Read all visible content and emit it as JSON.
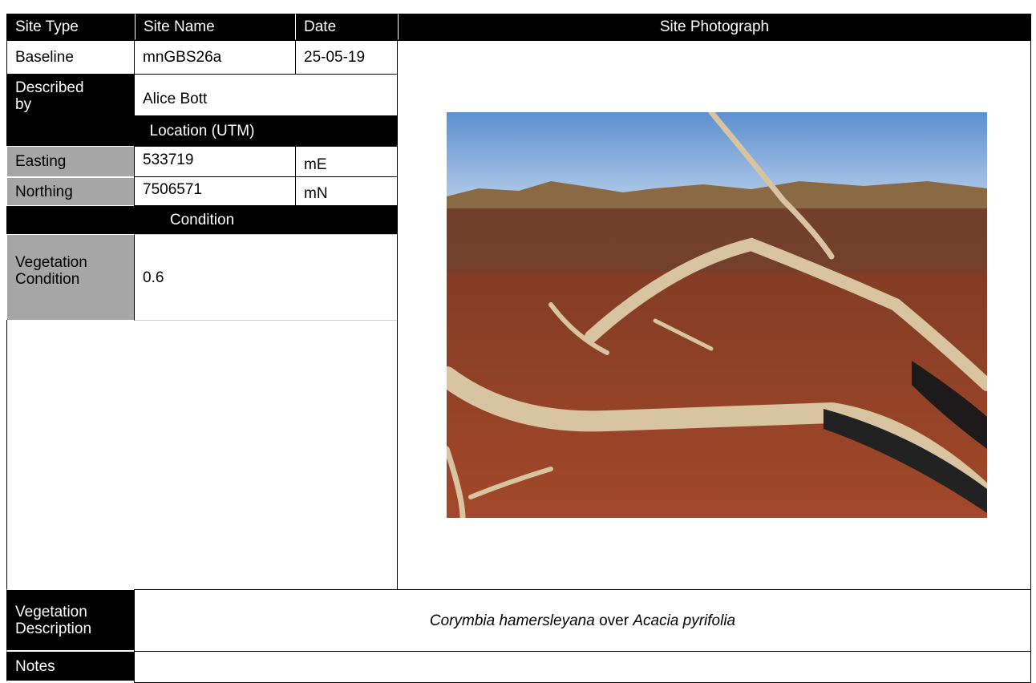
{
  "header": {
    "site_type": "Site Type",
    "site_name": "Site Name",
    "date": "Date",
    "photo": "Site Photograph"
  },
  "site": {
    "site_type": "Baseline",
    "site_name": "mnGBS26a",
    "date": "25-05-19"
  },
  "described_by": {
    "label": "Described by",
    "value": "Alice Bott"
  },
  "location": {
    "title": "Location (UTM)",
    "easting": {
      "label": "Easting",
      "value": "533719",
      "unit": "mE"
    },
    "northing": {
      "label": "Northing",
      "value": "7506571",
      "unit": "mN"
    }
  },
  "condition": {
    "title": "Condition",
    "vegetation_condition": {
      "label": "Vegetation Condition",
      "value": "0.6"
    }
  },
  "vegetation_description": {
    "label": "Vegetation Description",
    "text": [
      "Corymbia hamersleyana",
      "over",
      "Acacia pyrifolia"
    ]
  },
  "notes": {
    "label": "Notes"
  }
}
